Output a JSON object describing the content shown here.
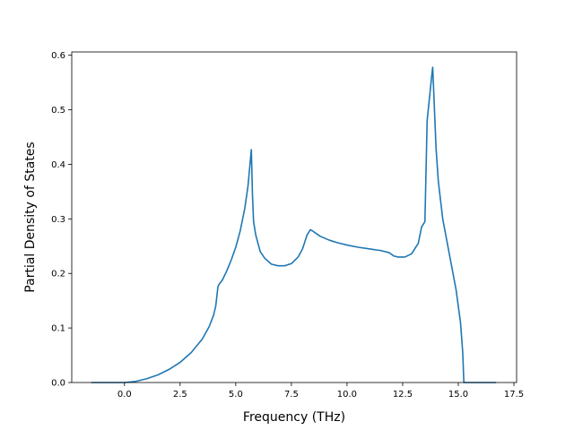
{
  "chart_data": {
    "type": "line",
    "title": "",
    "xlabel": "Frequency (THz)",
    "ylabel": "Partial Density of States",
    "xlim": [
      -2.37,
      17.62
    ],
    "ylim": [
      0,
      0.606
    ],
    "xticks": [
      0.0,
      2.5,
      5.0,
      7.5,
      10.0,
      12.5,
      15.0,
      17.5
    ],
    "xtick_labels": [
      "0.0",
      "2.5",
      "5.0",
      "7.5",
      "10.0",
      "12.5",
      "15.0",
      "17.5"
    ],
    "yticks": [
      0.0,
      0.1,
      0.2,
      0.3,
      0.4,
      0.5,
      0.6
    ],
    "ytick_labels": [
      "0.0",
      "0.1",
      "0.2",
      "0.3",
      "0.4",
      "0.5",
      "0.6"
    ],
    "grid": false,
    "legend": "none",
    "series": [
      {
        "color": "#1f77b4",
        "x": [
          -1.5,
          0.0,
          0.5,
          1.0,
          1.5,
          2.0,
          2.5,
          3.0,
          3.5,
          3.8,
          4.0,
          4.1,
          4.2,
          4.25,
          4.4,
          4.6,
          4.8,
          5.0,
          5.2,
          5.4,
          5.55,
          5.65,
          5.7,
          5.75,
          5.8,
          5.9,
          6.1,
          6.3,
          6.6,
          6.9,
          7.2,
          7.5,
          7.8,
          8.0,
          8.2,
          8.35,
          8.45,
          8.55,
          8.8,
          9.2,
          9.6,
          10.0,
          10.5,
          11.0,
          11.5,
          11.9,
          12.1,
          12.3,
          12.6,
          12.9,
          13.2,
          13.35,
          13.5,
          13.6,
          13.7,
          13.8,
          13.85,
          14.0,
          14.1,
          14.3,
          14.6,
          14.9,
          15.1,
          15.2,
          15.25,
          15.5,
          16.0,
          16.7
        ],
        "y": [
          0.0,
          0.0,
          0.002,
          0.007,
          0.014,
          0.024,
          0.037,
          0.055,
          0.08,
          0.102,
          0.123,
          0.14,
          0.176,
          0.18,
          0.188,
          0.205,
          0.225,
          0.248,
          0.278,
          0.318,
          0.36,
          0.405,
          0.427,
          0.345,
          0.295,
          0.27,
          0.24,
          0.228,
          0.217,
          0.214,
          0.214,
          0.218,
          0.23,
          0.245,
          0.27,
          0.28,
          0.278,
          0.275,
          0.268,
          0.261,
          0.256,
          0.252,
          0.248,
          0.245,
          0.242,
          0.238,
          0.232,
          0.23,
          0.23,
          0.236,
          0.255,
          0.285,
          0.295,
          0.48,
          0.52,
          0.56,
          0.578,
          0.43,
          0.37,
          0.3,
          0.235,
          0.17,
          0.11,
          0.055,
          0.0,
          0.0,
          0.0,
          0.0
        ]
      }
    ]
  }
}
